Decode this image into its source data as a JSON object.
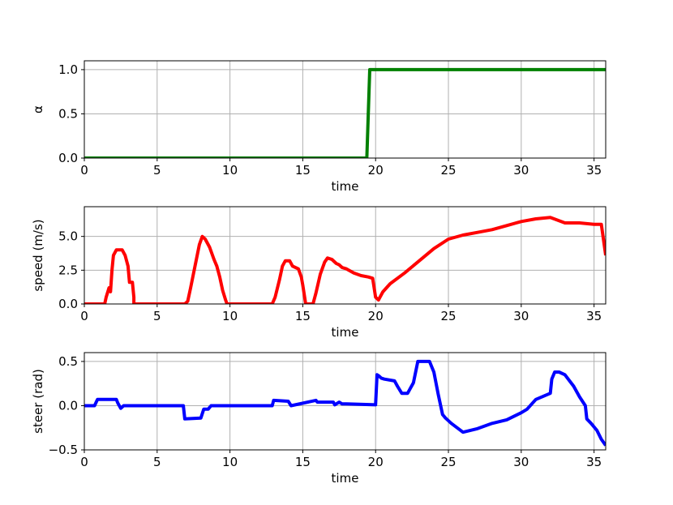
{
  "chart_data": [
    {
      "type": "line",
      "xlabel": "time",
      "ylabel": "α",
      "xlim": [
        0,
        35.8
      ],
      "ylim": [
        0,
        1.1
      ],
      "xticks": [
        "0",
        "5",
        "10",
        "15",
        "20",
        "25",
        "30",
        "35"
      ],
      "yticks": [
        "0.0",
        "0.5",
        "1.0"
      ],
      "grid": true,
      "color": "#008000",
      "series": [
        {
          "x": [
            0,
            19.4,
            19.6,
            35.8
          ],
          "y": [
            0,
            0,
            1,
            1
          ]
        }
      ]
    },
    {
      "type": "line",
      "xlabel": "time",
      "ylabel": "speed (m/s)",
      "xlim": [
        0,
        35.8
      ],
      "ylim": [
        0,
        7.2
      ],
      "xticks": [
        "0",
        "5",
        "10",
        "15",
        "20",
        "25",
        "30",
        "35"
      ],
      "yticks": [
        "0.0",
        "2.5",
        "5.0"
      ],
      "grid": true,
      "color": "#ff0000",
      "series": [
        {
          "x": [
            0,
            1.4,
            1.5,
            1.7,
            1.8,
            1.9,
            2.0,
            2.2,
            2.6,
            2.8,
            3.0,
            3.1,
            3.3,
            3.4,
            3.4,
            6.9,
            7.1,
            7.3,
            7.6,
            7.9,
            8.1,
            8.3,
            8.6,
            8.8,
            8.9,
            9.1,
            9.3,
            9.5,
            9.7,
            9.8,
            12.9,
            13.1,
            13.4,
            13.6,
            13.8,
            14.1,
            14.3,
            14.7,
            14.9,
            15.0,
            15.1,
            15.2,
            15.7,
            15.9,
            16.2,
            16.5,
            16.7,
            17.0,
            17.3,
            17.5,
            17.7,
            18.0,
            18.5,
            19.0,
            19.5,
            19.8,
            19.9,
            20.0,
            20.2,
            20.3,
            20.5,
            21.0,
            22.0,
            23.0,
            24.0,
            25.0,
            26.0,
            27.0,
            28.0,
            29.0,
            30.0,
            31.0,
            32.0,
            33.0,
            34.0,
            35.0,
            35.5,
            35.8
          ],
          "y": [
            0,
            0,
            0.5,
            1.2,
            0.9,
            2.5,
            3.6,
            4.0,
            4.0,
            3.6,
            2.8,
            1.6,
            1.6,
            0.5,
            0,
            0,
            0.2,
            1.2,
            2.8,
            4.4,
            5.0,
            4.8,
            4.2,
            3.6,
            3.3,
            2.8,
            2.0,
            1.0,
            0.3,
            0,
            0,
            0.5,
            1.8,
            2.8,
            3.2,
            3.2,
            2.8,
            2.6,
            2.0,
            1.4,
            0.7,
            0,
            0,
            0.8,
            2.2,
            3.1,
            3.4,
            3.3,
            3.0,
            2.9,
            2.7,
            2.6,
            2.3,
            2.1,
            2.0,
            1.9,
            1.2,
            0.5,
            0.3,
            0.5,
            0.9,
            1.5,
            2.3,
            3.2,
            4.1,
            4.8,
            5.1,
            5.3,
            5.5,
            5.8,
            6.1,
            6.3,
            6.4,
            6.0,
            6.0,
            5.9,
            5.9,
            3.6
          ]
        }
      ]
    },
    {
      "type": "line",
      "xlabel": "time",
      "ylabel": "steer (rad)",
      "xlim": [
        0,
        35.8
      ],
      "ylim": [
        -0.5,
        0.6
      ],
      "xticks": [
        "0",
        "5",
        "10",
        "15",
        "20",
        "25",
        "30",
        "35"
      ],
      "yticks": [
        "−0.5",
        "0.0",
        "0.5"
      ],
      "grid": true,
      "color": "#0000ff",
      "series": [
        {
          "x": [
            0,
            0.7,
            0.9,
            2.2,
            2.3,
            2.5,
            2.7,
            6.8,
            6.9,
            8.0,
            8.2,
            8.5,
            8.7,
            12.9,
            13.0,
            14.0,
            14.2,
            15.9,
            16.0,
            17.1,
            17.2,
            17.5,
            17.7,
            18.0,
            20.0,
            20.1,
            20.2,
            20.4,
            20.6,
            21.3,
            21.5,
            21.8,
            22.2,
            22.6,
            22.9,
            23.7,
            24.0,
            24.3,
            24.6,
            24.8,
            25.2,
            26.0,
            27.0,
            28.0,
            29.0,
            30.0,
            30.4,
            31.0,
            32.0,
            32.1,
            32.3,
            32.6,
            33.0,
            33.6,
            34.0,
            34.4,
            34.5,
            34.8,
            35.2,
            35.5,
            35.8
          ],
          "y": [
            0,
            0,
            0.07,
            0.07,
            0.03,
            -0.03,
            0,
            0,
            -0.15,
            -0.14,
            -0.04,
            -0.04,
            0,
            0,
            0.06,
            0.05,
            0,
            0.06,
            0.04,
            0.04,
            0.01,
            0.04,
            0.02,
            0.02,
            0.01,
            0.35,
            0.34,
            0.31,
            0.3,
            0.28,
            0.22,
            0.14,
            0.14,
            0.26,
            0.5,
            0.5,
            0.38,
            0.13,
            -0.1,
            -0.14,
            -0.2,
            -0.3,
            -0.26,
            -0.2,
            -0.16,
            -0.08,
            -0.04,
            0.07,
            0.14,
            0.3,
            0.38,
            0.38,
            0.35,
            0.22,
            0.1,
            0.0,
            -0.15,
            -0.2,
            -0.28,
            -0.38,
            -0.45
          ]
        }
      ]
    }
  ]
}
